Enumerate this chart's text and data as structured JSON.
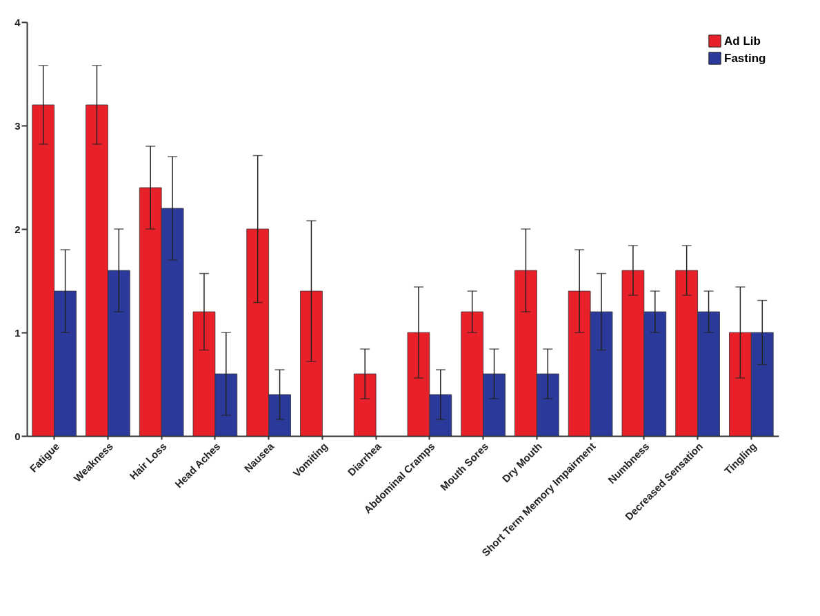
{
  "chart_data": {
    "type": "bar",
    "categories": [
      "Fatigue",
      "Weakness",
      "Hair Loss",
      "Head Aches",
      "Nausea",
      "Vomiting",
      "Diarrhea",
      "Abdominal Cramps",
      "Mouth Sores",
      "Dry Mouth",
      "Short Term Memory Impairment",
      "Numbness",
      "Decreased Sensation",
      "Tingling"
    ],
    "series": [
      {
        "name": "Ad Lib",
        "color": "#e8202a",
        "values": [
          3.2,
          3.2,
          2.4,
          1.2,
          2.0,
          1.4,
          0.6,
          1.0,
          1.2,
          1.6,
          1.4,
          1.6,
          1.6,
          1.0
        ],
        "errors": [
          0.38,
          0.38,
          0.4,
          0.37,
          0.71,
          0.68,
          0.24,
          0.44,
          0.2,
          0.4,
          0.4,
          0.24,
          0.24,
          0.44
        ]
      },
      {
        "name": "Fasting",
        "color": "#2b3a9a",
        "values": [
          1.4,
          1.6,
          2.2,
          0.6,
          0.4,
          null,
          null,
          0.4,
          0.6,
          0.6,
          1.2,
          1.2,
          1.2,
          1.0
        ],
        "errors": [
          0.4,
          0.4,
          0.5,
          0.4,
          0.24,
          null,
          null,
          0.24,
          0.24,
          0.24,
          0.37,
          0.2,
          0.2,
          0.31
        ]
      }
    ],
    "ylim": [
      0,
      4
    ],
    "yticks": [
      0,
      1,
      2,
      3,
      4
    ],
    "grid": false,
    "legend": "top right"
  }
}
